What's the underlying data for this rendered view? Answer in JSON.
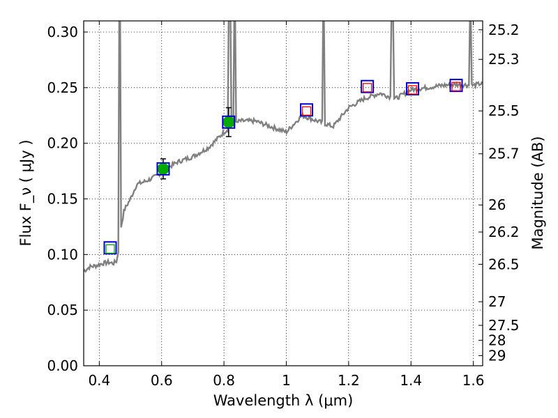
{
  "chart_data": {
    "type": "line",
    "title": "",
    "xlabel": "Wavelength  λ (μm)",
    "ylabel": "Flux  F_ν  ( μJy )",
    "ylabel_right": "Magnitude (AB)",
    "xlim": [
      0.35,
      1.63
    ],
    "ylim": [
      0,
      0.31
    ],
    "grid": true,
    "x_ticks": [
      0.4,
      0.6,
      0.8,
      1.0,
      1.2,
      1.4,
      1.6
    ],
    "x_tick_labels": [
      "0.4",
      "0.6",
      "0.8",
      "1",
      "1.2",
      "1.4",
      "1.6"
    ],
    "y_ticks": [
      0,
      0.05,
      0.1,
      0.15,
      0.2,
      0.25,
      0.3
    ],
    "y_tick_labels": [
      "0.00",
      "0.05",
      "0.10",
      "0.15",
      "0.20",
      "0.25",
      "0.30"
    ],
    "mag_ticks": [
      25.2,
      25.3,
      25.5,
      25.7,
      26,
      26.2,
      26.5,
      27,
      27.5,
      28,
      29
    ],
    "mag_tick_labels": [
      "25.2",
      "25.3",
      "25.5",
      "25.7",
      "26",
      "26.2",
      "26.5",
      "27",
      "27.5",
      "28",
      "29"
    ],
    "spectrum_color": "#808080",
    "spectrum_continuum": [
      [
        0.35,
        0.085
      ],
      [
        0.37,
        0.089
      ],
      [
        0.39,
        0.09
      ],
      [
        0.41,
        0.092
      ],
      [
        0.43,
        0.093
      ],
      [
        0.445,
        0.092
      ],
      [
        0.455,
        0.094
      ],
      [
        0.46,
        0.1
      ],
      [
        0.47,
        0.125
      ],
      [
        0.48,
        0.14
      ],
      [
        0.5,
        0.15
      ],
      [
        0.52,
        0.163
      ],
      [
        0.55,
        0.166
      ],
      [
        0.58,
        0.17
      ],
      [
        0.6,
        0.174
      ],
      [
        0.62,
        0.178
      ],
      [
        0.65,
        0.183
      ],
      [
        0.7,
        0.188
      ],
      [
        0.75,
        0.196
      ],
      [
        0.8,
        0.21
      ],
      [
        0.85,
        0.22
      ],
      [
        0.9,
        0.22
      ],
      [
        0.95,
        0.215
      ],
      [
        1.0,
        0.21
      ],
      [
        1.05,
        0.225
      ],
      [
        1.1,
        0.22
      ],
      [
        1.15,
        0.215
      ],
      [
        1.2,
        0.232
      ],
      [
        1.25,
        0.24
      ],
      [
        1.3,
        0.245
      ],
      [
        1.35,
        0.24
      ],
      [
        1.4,
        0.248
      ],
      [
        1.45,
        0.25
      ],
      [
        1.5,
        0.252
      ],
      [
        1.55,
        0.253
      ],
      [
        1.6,
        0.252
      ],
      [
        1.63,
        0.254
      ]
    ],
    "emission_lines": [
      [
        0.466,
        0.31
      ],
      [
        0.507,
        0.15
      ],
      [
        0.73,
        0.19
      ],
      [
        0.818,
        0.31
      ],
      [
        0.835,
        0.31
      ],
      [
        1.12,
        0.31
      ],
      [
        1.34,
        0.31
      ],
      [
        1.59,
        0.31
      ]
    ],
    "series": [
      {
        "name": "",
        "marker": "filled-circle",
        "color": "#00aa00",
        "x": [
          0.605,
          0.815
        ],
        "y": [
          0.177,
          0.219
        ],
        "yerr": [
          0.009,
          0.013
        ]
      },
      {
        "name": "",
        "marker": "open-square-large",
        "color": "#0000cc",
        "x": [
          0.435,
          0.605,
          0.815,
          1.065,
          1.26,
          1.405,
          1.545
        ],
        "y": [
          0.106,
          0.177,
          0.219,
          0.23,
          0.251,
          0.249,
          0.252
        ]
      },
      {
        "name": "",
        "marker": "open-square-small",
        "color": "#ff0000",
        "x": [
          1.065,
          1.26,
          1.405,
          1.545
        ],
        "y": [
          0.229,
          0.25,
          0.248,
          0.251
        ]
      },
      {
        "name": "",
        "marker": "open-square-small",
        "color": "#00aa00",
        "x": [
          0.435
        ],
        "y": [
          0.105
        ]
      }
    ]
  }
}
